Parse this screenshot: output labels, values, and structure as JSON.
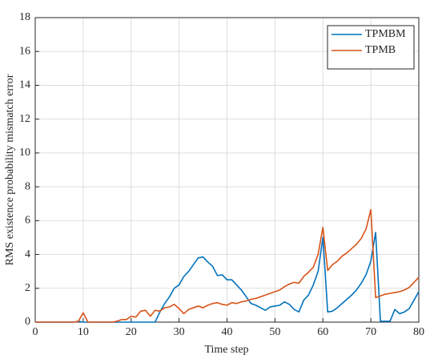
{
  "chart_data": {
    "type": "line",
    "xlabel": "Time step",
    "ylabel": "RMS existence probability mismatch error",
    "x": [
      0,
      1,
      2,
      3,
      4,
      5,
      6,
      7,
      8,
      9,
      10,
      11,
      12,
      13,
      14,
      15,
      16,
      17,
      18,
      19,
      20,
      21,
      22,
      23,
      24,
      25,
      26,
      27,
      28,
      29,
      30,
      31,
      32,
      33,
      34,
      35,
      36,
      37,
      38,
      39,
      40,
      41,
      42,
      43,
      44,
      45,
      46,
      47,
      48,
      49,
      50,
      51,
      52,
      53,
      54,
      55,
      56,
      57,
      58,
      59,
      60,
      61,
      62,
      63,
      64,
      65,
      66,
      67,
      68,
      69,
      70,
      71,
      72,
      73,
      74,
      75,
      76,
      77,
      78,
      79,
      80
    ],
    "series": [
      {
        "name": "TPMBM",
        "color": "#0072bd",
        "values": [
          0,
          0,
          0,
          0,
          0,
          0,
          0,
          0,
          0,
          0.05,
          0,
          0,
          0,
          0,
          0,
          0,
          0,
          0,
          0,
          0,
          0,
          0,
          0,
          0,
          0,
          0,
          0.6,
          1.1,
          1.5,
          2.0,
          2.2,
          2.7,
          3.0,
          3.4,
          3.8,
          3.85,
          3.55,
          3.3,
          2.75,
          2.8,
          2.5,
          2.5,
          2.2,
          1.9,
          1.5,
          1.1,
          1.0,
          0.85,
          0.7,
          0.9,
          0.95,
          1.0,
          1.2,
          1.05,
          0.75,
          0.6,
          1.3,
          1.6,
          2.2,
          3.0,
          5.0,
          0.6,
          0.65,
          0.85,
          1.1,
          1.35,
          1.6,
          1.9,
          2.3,
          2.8,
          3.6,
          5.3,
          0.05,
          0.05,
          0.05,
          0.75,
          0.5,
          0.6,
          0.8,
          1.3,
          1.8
        ]
      },
      {
        "name": "TPMB",
        "color": "#d95319",
        "values": [
          0,
          0,
          0,
          0,
          0,
          0,
          0,
          0,
          0,
          0.05,
          0.55,
          0,
          0,
          0,
          0,
          0,
          0,
          0.05,
          0.15,
          0.15,
          0.35,
          0.3,
          0.65,
          0.7,
          0.35,
          0.7,
          0.65,
          0.85,
          0.9,
          1.05,
          0.8,
          0.5,
          0.75,
          0.85,
          0.95,
          0.85,
          1.0,
          1.1,
          1.15,
          1.05,
          1.0,
          1.15,
          1.1,
          1.2,
          1.25,
          1.35,
          1.4,
          1.5,
          1.6,
          1.7,
          1.8,
          1.9,
          2.1,
          2.25,
          2.35,
          2.3,
          2.7,
          2.95,
          3.25,
          4.0,
          5.6,
          3.05,
          3.4,
          3.6,
          3.9,
          4.1,
          4.35,
          4.6,
          4.95,
          5.5,
          6.65,
          1.45,
          1.55,
          1.65,
          1.7,
          1.75,
          1.8,
          1.9,
          2.05,
          2.35,
          2.65
        ]
      }
    ],
    "xlim": [
      0,
      80
    ],
    "xticks": [
      0,
      10,
      20,
      30,
      40,
      50,
      60,
      70,
      80
    ],
    "ylim": [
      0,
      18
    ],
    "yticks": [
      0,
      2,
      4,
      6,
      8,
      10,
      12,
      14,
      16,
      18
    ],
    "grid": true,
    "legend": "upper right"
  }
}
